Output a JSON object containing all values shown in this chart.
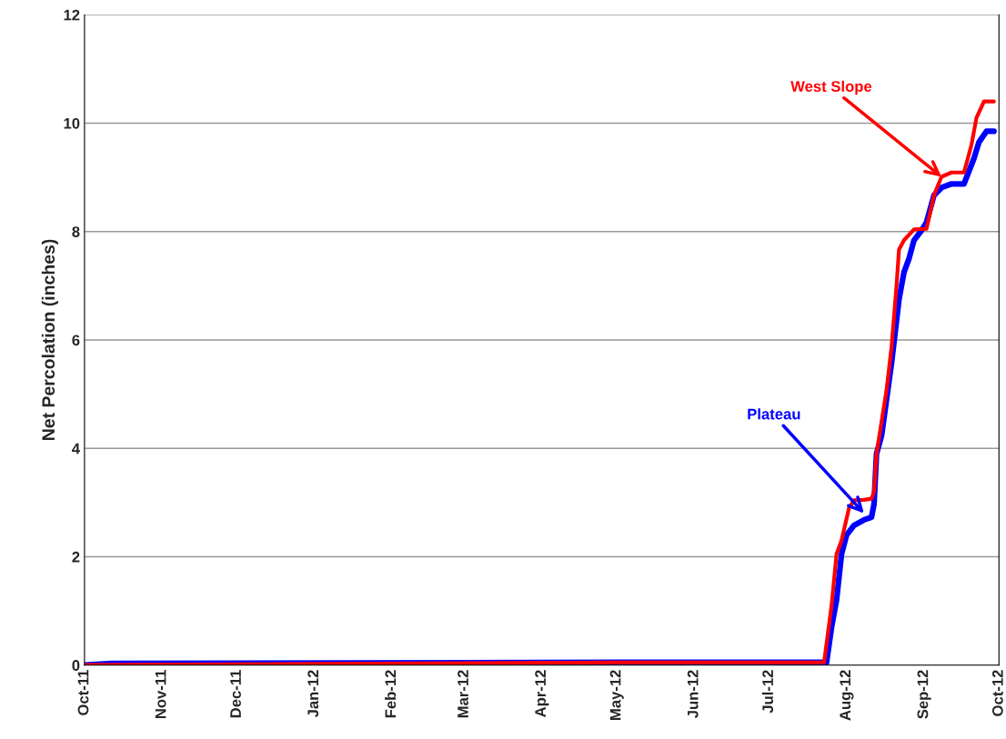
{
  "chart_data": {
    "type": "line",
    "ylabel": "Net Percolation (inches)",
    "ylim": [
      0,
      12
    ],
    "yticks": [
      0,
      2,
      4,
      6,
      8,
      10,
      12
    ],
    "grid": "y",
    "legend": false,
    "marker": "none",
    "line_style": "solid",
    "xlim": [
      "2011-10-01",
      "2012-10-01"
    ],
    "xticks": [
      {
        "value": "2011-10-01",
        "label": "Oct-11"
      },
      {
        "value": "2011-11-01",
        "label": "Nov-11"
      },
      {
        "value": "2011-12-01",
        "label": "Dec-11"
      },
      {
        "value": "2012-01-01",
        "label": "Jan-12"
      },
      {
        "value": "2012-02-01",
        "label": "Feb-12"
      },
      {
        "value": "2012-03-01",
        "label": "Mar-12"
      },
      {
        "value": "2012-04-01",
        "label": "Apr-12"
      },
      {
        "value": "2012-05-01",
        "label": "May-12"
      },
      {
        "value": "2012-06-01",
        "label": "Jun-12"
      },
      {
        "value": "2012-07-01",
        "label": "Jul-12"
      },
      {
        "value": "2012-08-01",
        "label": "Aug-12"
      },
      {
        "value": "2012-09-01",
        "label": "Sep-12"
      },
      {
        "value": "2012-10-01",
        "label": "Oct-12"
      }
    ],
    "series": [
      {
        "color": "#0000ff",
        "x": [
          "2011-10-01",
          "2011-10-12",
          "2012-05-01",
          "2012-07-24",
          "2012-07-26",
          "2012-07-28",
          "2012-07-30",
          "2012-08-01",
          "2012-08-04",
          "2012-08-08",
          "2012-08-11",
          "2012-08-12",
          "2012-08-13",
          "2012-08-15",
          "2012-08-17",
          "2012-08-19",
          "2012-08-22",
          "2012-08-24",
          "2012-08-26",
          "2012-08-28",
          "2012-08-31",
          "2012-09-02",
          "2012-09-05",
          "2012-09-08",
          "2012-09-12",
          "2012-09-17",
          "2012-09-21",
          "2012-09-23",
          "2012-09-26",
          "2012-09-29"
        ],
        "values": [
          0,
          0.03,
          0.05,
          0.05,
          0.7,
          1.2,
          2.05,
          2.4,
          2.58,
          2.68,
          2.73,
          2.97,
          3.9,
          4.23,
          4.9,
          5.57,
          6.75,
          7.25,
          7.5,
          7.84,
          8.02,
          8.17,
          8.67,
          8.81,
          8.88,
          8.88,
          9.35,
          9.65,
          9.85,
          9.85
        ]
      },
      {
        "color": "#ff0000",
        "x": [
          "2011-10-01",
          "2012-05-01",
          "2012-07-23",
          "2012-07-26",
          "2012-07-28",
          "2012-07-30",
          "2012-08-02",
          "2012-08-04",
          "2012-08-08",
          "2012-08-11",
          "2012-08-12",
          "2012-08-13",
          "2012-08-17",
          "2012-08-19",
          "2012-08-21",
          "2012-08-22",
          "2012-08-24",
          "2012-08-28",
          "2012-09-02",
          "2012-09-05",
          "2012-09-08",
          "2012-09-12",
          "2012-09-17",
          "2012-09-20",
          "2012-09-22",
          "2012-09-25",
          "2012-09-29"
        ],
        "values": [
          0,
          0.05,
          0.05,
          1.1,
          2.05,
          2.3,
          2.9,
          3.04,
          3.05,
          3.07,
          3.2,
          3.9,
          5.07,
          5.87,
          7.0,
          7.67,
          7.84,
          8.04,
          8.05,
          8.67,
          9.01,
          9.09,
          9.09,
          9.6,
          10.1,
          10.4,
          10.4
        ]
      }
    ],
    "annotations": [
      {
        "text": "Plateau",
        "x": "2012-08-08",
        "y": 2.8
      },
      {
        "text": "West Slope",
        "x": "2012-09-08",
        "y": 9.01
      }
    ]
  }
}
